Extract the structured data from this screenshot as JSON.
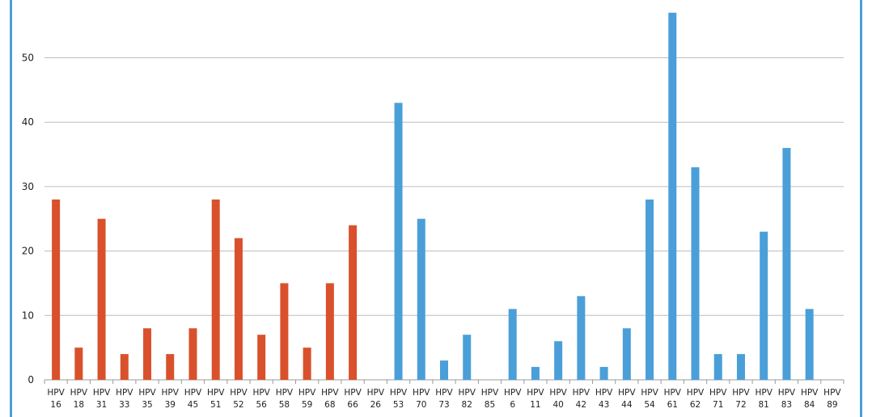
{
  "colors": {
    "red": "#d9512c",
    "blue": "#4a9fd8",
    "grid": "#bdbdbd",
    "axis": "#9a9a9a",
    "text": "#222222"
  },
  "chart_data": {
    "type": "bar",
    "title": "",
    "xlabel": "",
    "ylabel": "",
    "ylim": [
      0,
      57
    ],
    "yticks": [
      0,
      10,
      20,
      30,
      40,
      50
    ],
    "grid": true,
    "categories": [
      [
        "HPV",
        "16"
      ],
      [
        "HPV",
        "18"
      ],
      [
        "HPV",
        "31"
      ],
      [
        "HPV",
        "33"
      ],
      [
        "HPV",
        "35"
      ],
      [
        "HPV",
        "39"
      ],
      [
        "HPV",
        "45"
      ],
      [
        "HPV",
        "51"
      ],
      [
        "HPV",
        "52"
      ],
      [
        "HPV",
        "56"
      ],
      [
        "HPV",
        "58"
      ],
      [
        "HPV",
        "59"
      ],
      [
        "HPV",
        "68"
      ],
      [
        "HPV",
        "66"
      ],
      [
        "HPV",
        "26"
      ],
      [
        "HPV",
        "53"
      ],
      [
        "HPV",
        "70"
      ],
      [
        "HPV",
        "73"
      ],
      [
        "HPV",
        "82"
      ],
      [
        "HPV",
        "85"
      ],
      [
        "HPV",
        "6"
      ],
      [
        "HPV",
        "11"
      ],
      [
        "HPV",
        "40"
      ],
      [
        "HPV",
        "42"
      ],
      [
        "HPV",
        "43"
      ],
      [
        "HPV",
        "44"
      ],
      [
        "HPV",
        "54"
      ],
      [
        "HPV",
        "61"
      ],
      [
        "HPV",
        "62"
      ],
      [
        "HPV",
        "71"
      ],
      [
        "HPV",
        "72"
      ],
      [
        "HPV",
        "81"
      ],
      [
        "HPV",
        "83"
      ],
      [
        "HPV",
        "84"
      ],
      [
        "HPV",
        "89"
      ]
    ],
    "values": [
      28,
      5,
      25,
      4,
      8,
      4,
      8,
      28,
      22,
      7,
      15,
      5,
      15,
      24,
      0,
      43,
      25,
      3,
      7,
      0,
      11,
      2,
      6,
      13,
      2,
      8,
      28,
      57,
      33,
      4,
      4,
      23,
      36,
      11,
      0
    ],
    "bar_colors": [
      "red",
      "red",
      "red",
      "red",
      "red",
      "red",
      "red",
      "red",
      "red",
      "red",
      "red",
      "red",
      "red",
      "red",
      "blue",
      "blue",
      "blue",
      "blue",
      "blue",
      "blue",
      "blue",
      "blue",
      "blue",
      "blue",
      "blue",
      "blue",
      "blue",
      "blue",
      "blue",
      "blue",
      "blue",
      "blue",
      "blue",
      "blue",
      "blue"
    ]
  }
}
